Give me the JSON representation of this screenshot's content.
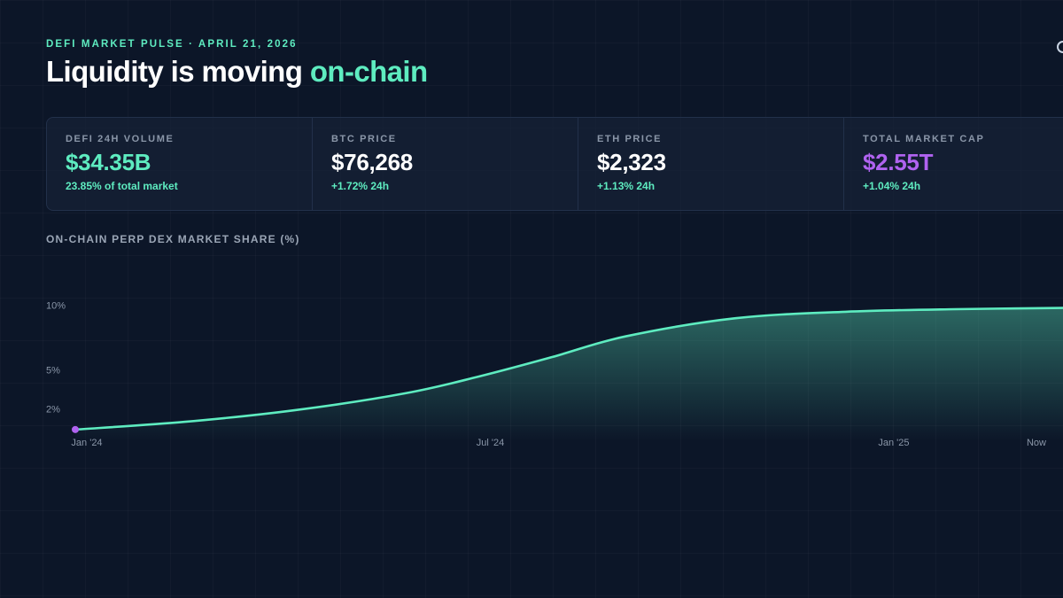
{
  "header": {
    "kicker": "DEFI MARKET PULSE · APRIL 21, 2026",
    "title_main": "Liquidity is moving ",
    "title_accent": "on-chain"
  },
  "stats": [
    {
      "label": "DEFI 24H VOLUME",
      "value": "$34.35B",
      "sub": "23.85% of total market"
    },
    {
      "label": "BTC PRICE",
      "value": "$76,268",
      "sub": "+1.72% 24h"
    },
    {
      "label": "ETH PRICE",
      "value": "$2,323",
      "sub": "+1.13% 24h"
    },
    {
      "label": "TOTAL MARKET CAP",
      "value": "$2.55T",
      "sub": "+1.04% 24h"
    }
  ],
  "colors": {
    "accent": "#5eecc0",
    "purple": "#b063f0",
    "background": "#0c1628"
  },
  "chart_data": {
    "type": "area",
    "title": "ON-CHAIN PERP DEX MARKET SHARE (%)",
    "xlabel": "",
    "ylabel": "",
    "x": [
      0,
      3,
      6,
      9,
      11,
      13,
      15,
      18,
      21,
      24,
      27
    ],
    "values": [
      0.4,
      1.0,
      1.9,
      3.2,
      4.5,
      6.0,
      7.6,
      9.0,
      9.5,
      9.7,
      9.8
    ],
    "ylim": [
      -0.5,
      11
    ],
    "xlim": [
      0,
      27
    ],
    "y_ticks": [
      {
        "value": 10,
        "label": "10%"
      },
      {
        "value": 5,
        "label": "5%"
      },
      {
        "value": 2,
        "label": "2%"
      }
    ],
    "x_ticks": [
      {
        "value": 0,
        "label": "Jan '24"
      },
      {
        "value": 11,
        "label": "Jul '24"
      },
      {
        "value": 22,
        "label": "Jan '25"
      },
      {
        "value": 27,
        "label": "Now"
      }
    ],
    "grid": false,
    "legend": "none"
  }
}
